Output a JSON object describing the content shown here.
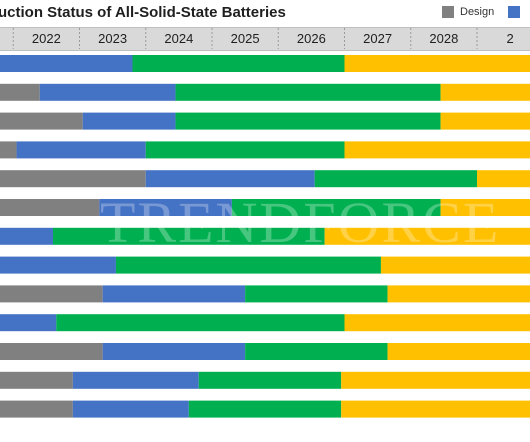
{
  "title": "uction  Status of All-Solid-State  Batteries",
  "legend": {
    "items": [
      {
        "label": "Design",
        "color": "#808080"
      },
      {
        "label": "",
        "color": "#4472c4"
      }
    ]
  },
  "watermark": "TRENDFORCE",
  "chart_data": {
    "type": "bar",
    "orientation": "horizontal-stacked-timeline",
    "title": "uction  Status of All-Solid-State  Batteries",
    "x_ticks": [
      "1",
      "2022",
      "2023",
      "2024",
      "2025",
      "2026",
      "2027",
      "2028",
      "2"
    ],
    "xlim": [
      2021.3,
      2029.3
    ],
    "stage_colors": {
      "gray": "#808080",
      "blue": "#4472c4",
      "green": "#00b050",
      "yellow": "#ffc000"
    },
    "rows": [
      {
        "segments": [
          {
            "stage": "blue",
            "start": 2021.3,
            "end": 2023.3
          },
          {
            "stage": "green",
            "start": 2023.3,
            "end": 2026.5
          },
          {
            "stage": "yellow",
            "start": 2026.5,
            "end": 2029.3
          }
        ]
      },
      {
        "segments": [
          {
            "stage": "gray",
            "start": 2021.3,
            "end": 2021.9
          },
          {
            "stage": "blue",
            "start": 2021.9,
            "end": 2023.95
          },
          {
            "stage": "green",
            "start": 2023.95,
            "end": 2027.95
          },
          {
            "stage": "yellow",
            "start": 2027.95,
            "end": 2029.3
          }
        ]
      },
      {
        "segments": [
          {
            "stage": "gray",
            "start": 2021.3,
            "end": 2022.55
          },
          {
            "stage": "blue",
            "start": 2022.55,
            "end": 2023.95
          },
          {
            "stage": "green",
            "start": 2023.95,
            "end": 2027.95
          },
          {
            "stage": "yellow",
            "start": 2027.95,
            "end": 2029.3
          }
        ]
      },
      {
        "segments": [
          {
            "stage": "gray",
            "start": 2021.3,
            "end": 2021.55
          },
          {
            "stage": "blue",
            "start": 2021.55,
            "end": 2023.5
          },
          {
            "stage": "green",
            "start": 2023.5,
            "end": 2026.5
          },
          {
            "stage": "yellow",
            "start": 2026.5,
            "end": 2029.3
          }
        ]
      },
      {
        "segments": [
          {
            "stage": "gray",
            "start": 2021.3,
            "end": 2023.5
          },
          {
            "stage": "blue",
            "start": 2023.5,
            "end": 2026.05
          },
          {
            "stage": "green",
            "start": 2026.05,
            "end": 2028.5
          },
          {
            "stage": "yellow",
            "start": 2028.5,
            "end": 2029.3
          }
        ]
      },
      {
        "segments": [
          {
            "stage": "gray",
            "start": 2021.3,
            "end": 2022.8
          },
          {
            "stage": "blue",
            "start": 2022.8,
            "end": 2024.8
          },
          {
            "stage": "green",
            "start": 2024.8,
            "end": 2027.95
          },
          {
            "stage": "yellow",
            "start": 2027.95,
            "end": 2029.3
          }
        ]
      },
      {
        "segments": [
          {
            "stage": "blue",
            "start": 2021.3,
            "end": 2022.1
          },
          {
            "stage": "green",
            "start": 2022.1,
            "end": 2026.2
          },
          {
            "stage": "yellow",
            "start": 2026.2,
            "end": 2029.3
          }
        ]
      },
      {
        "segments": [
          {
            "stage": "blue",
            "start": 2021.3,
            "end": 2023.05
          },
          {
            "stage": "green",
            "start": 2023.05,
            "end": 2027.05
          },
          {
            "stage": "yellow",
            "start": 2027.05,
            "end": 2029.3
          }
        ]
      },
      {
        "segments": [
          {
            "stage": "gray",
            "start": 2021.3,
            "end": 2022.85
          },
          {
            "stage": "blue",
            "start": 2022.85,
            "end": 2025.0
          },
          {
            "stage": "green",
            "start": 2025.0,
            "end": 2027.15
          },
          {
            "stage": "yellow",
            "start": 2027.15,
            "end": 2029.3
          }
        ]
      },
      {
        "segments": [
          {
            "stage": "blue",
            "start": 2021.3,
            "end": 2022.15
          },
          {
            "stage": "green",
            "start": 2022.15,
            "end": 2026.5
          },
          {
            "stage": "yellow",
            "start": 2026.5,
            "end": 2029.3
          }
        ]
      },
      {
        "segments": [
          {
            "stage": "gray",
            "start": 2021.3,
            "end": 2022.85
          },
          {
            "stage": "blue",
            "start": 2022.85,
            "end": 2025.0
          },
          {
            "stage": "green",
            "start": 2025.0,
            "end": 2027.15
          },
          {
            "stage": "yellow",
            "start": 2027.15,
            "end": 2029.3
          }
        ]
      },
      {
        "segments": [
          {
            "stage": "gray",
            "start": 2021.3,
            "end": 2022.4
          },
          {
            "stage": "blue",
            "start": 2022.4,
            "end": 2024.3
          },
          {
            "stage": "green",
            "start": 2024.3,
            "end": 2026.45
          },
          {
            "stage": "yellow",
            "start": 2026.45,
            "end": 2029.3
          }
        ]
      },
      {
        "segments": [
          {
            "stage": "gray",
            "start": 2021.3,
            "end": 2022.4
          },
          {
            "stage": "blue",
            "start": 2022.4,
            "end": 2024.15
          },
          {
            "stage": "green",
            "start": 2024.15,
            "end": 2026.45
          },
          {
            "stage": "yellow",
            "start": 2026.45,
            "end": 2029.3
          }
        ]
      }
    ]
  }
}
